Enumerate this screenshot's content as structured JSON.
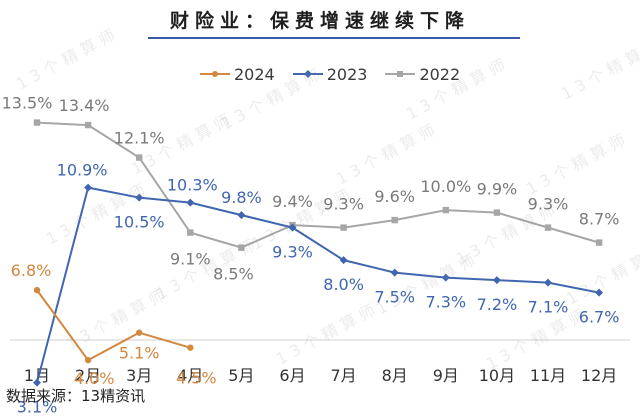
{
  "header": {
    "title": "财险业：保费增速继续下降"
  },
  "watermark": "13个精算师",
  "source_note": "数据来源：13精资讯",
  "colors": {
    "2024": "#d4873f",
    "2023": "#4166b0",
    "2022": "#a6a6a6",
    "accent_rule": "#3a5aa8"
  },
  "chart_data": {
    "type": "line",
    "title": "财险业：保费增速继续下降",
    "categories": [
      "1月",
      "2月",
      "3月",
      "4月",
      "5月",
      "6月",
      "7月",
      "8月",
      "9月",
      "10月",
      "11月",
      "12月"
    ],
    "legend_position": "top",
    "grid": false,
    "value_suffix": "%",
    "series": [
      {
        "name": "2024",
        "marker": "circle",
        "values": [
          6.8,
          4.0,
          5.1,
          4.5,
          null,
          null,
          null,
          null,
          null,
          null,
          null,
          null
        ]
      },
      {
        "name": "2023",
        "marker": "diamond",
        "values": [
          3.1,
          10.9,
          10.5,
          10.3,
          9.8,
          9.3,
          8.0,
          7.5,
          7.3,
          7.2,
          7.1,
          6.7
        ]
      },
      {
        "name": "2022",
        "marker": "square",
        "values": [
          13.5,
          13.4,
          12.1,
          9.1,
          8.5,
          9.4,
          9.3,
          9.6,
          10.0,
          9.9,
          9.3,
          8.7
        ]
      }
    ]
  }
}
